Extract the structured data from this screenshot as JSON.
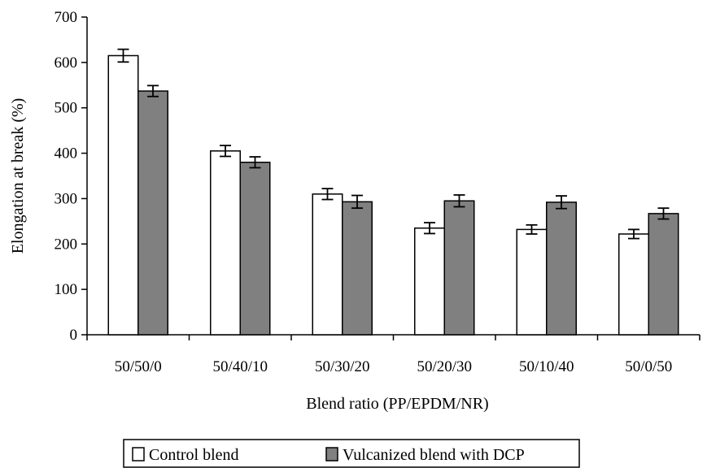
{
  "chart_data": {
    "type": "bar",
    "title": "",
    "xlabel": "Blend ratio (PP/EPDM/NR)",
    "ylabel": "Elongation at break (%)",
    "ylim": [
      0,
      700
    ],
    "yticks": [
      0,
      100,
      200,
      300,
      400,
      500,
      600,
      700
    ],
    "categories": [
      "50/50/0",
      "50/40/10",
      "50/30/20",
      "50/20/30",
      "50/10/40",
      "50/0/50"
    ],
    "series": [
      {
        "name": "Control blend",
        "values": [
          615,
          405,
          310,
          235,
          232,
          222
        ],
        "errors": [
          14,
          12,
          12,
          12,
          10,
          10
        ],
        "fill": "#ffffff"
      },
      {
        "name": "Vulcanized blend with DCP",
        "values": [
          537,
          380,
          293,
          295,
          292,
          267
        ],
        "errors": [
          12,
          12,
          14,
          13,
          14,
          12
        ],
        "fill": "#808080"
      }
    ],
    "grid": false,
    "legend_position": "bottom"
  }
}
